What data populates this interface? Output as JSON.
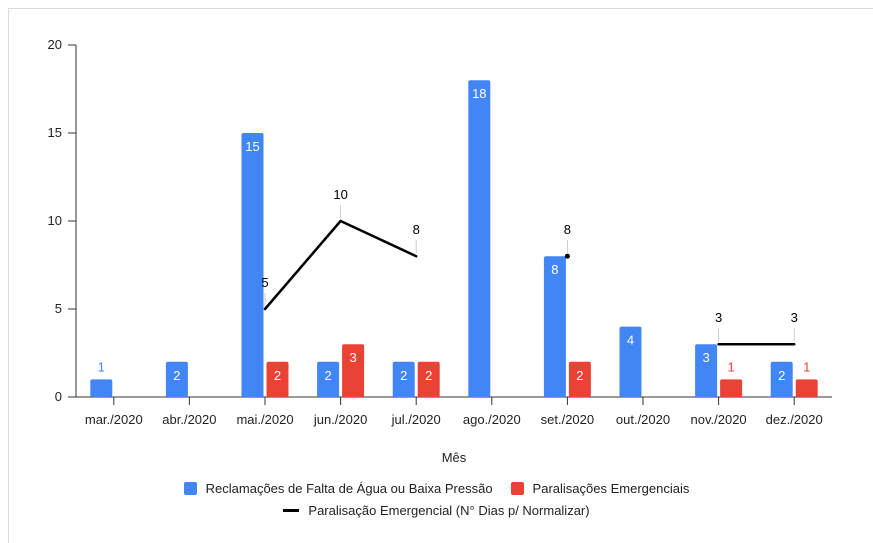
{
  "chart_data": {
    "type": "bar",
    "xlabel": "Mês",
    "ylim": [
      0,
      20
    ],
    "yticks": [
      0,
      5,
      10,
      15,
      20
    ],
    "categories": [
      "mar./2020",
      "abr./2020",
      "mai./2020",
      "jun./2020",
      "jul./2020",
      "ago./2020",
      "set./2020",
      "out./2020",
      "nov./2020",
      "dez./2020"
    ],
    "series": [
      {
        "name": "Reclamações de Falta de Água ou Baixa Pressão",
        "kind": "bar",
        "color": "#4285F4",
        "values": [
          1,
          2,
          15,
          2,
          2,
          18,
          8,
          4,
          3,
          2
        ]
      },
      {
        "name": "Paralisações Emergenciais",
        "kind": "bar",
        "color": "#EA4335",
        "values": [
          null,
          null,
          2,
          3,
          2,
          null,
          2,
          null,
          1,
          1
        ]
      },
      {
        "name": "Paralisação Emergencial (N° Dias p/ Normalizar)",
        "kind": "line",
        "color": "#000000",
        "values": [
          null,
          null,
          5,
          10,
          8,
          null,
          8,
          null,
          3,
          3
        ]
      }
    ],
    "legend_position": "bottom",
    "grid": false
  }
}
